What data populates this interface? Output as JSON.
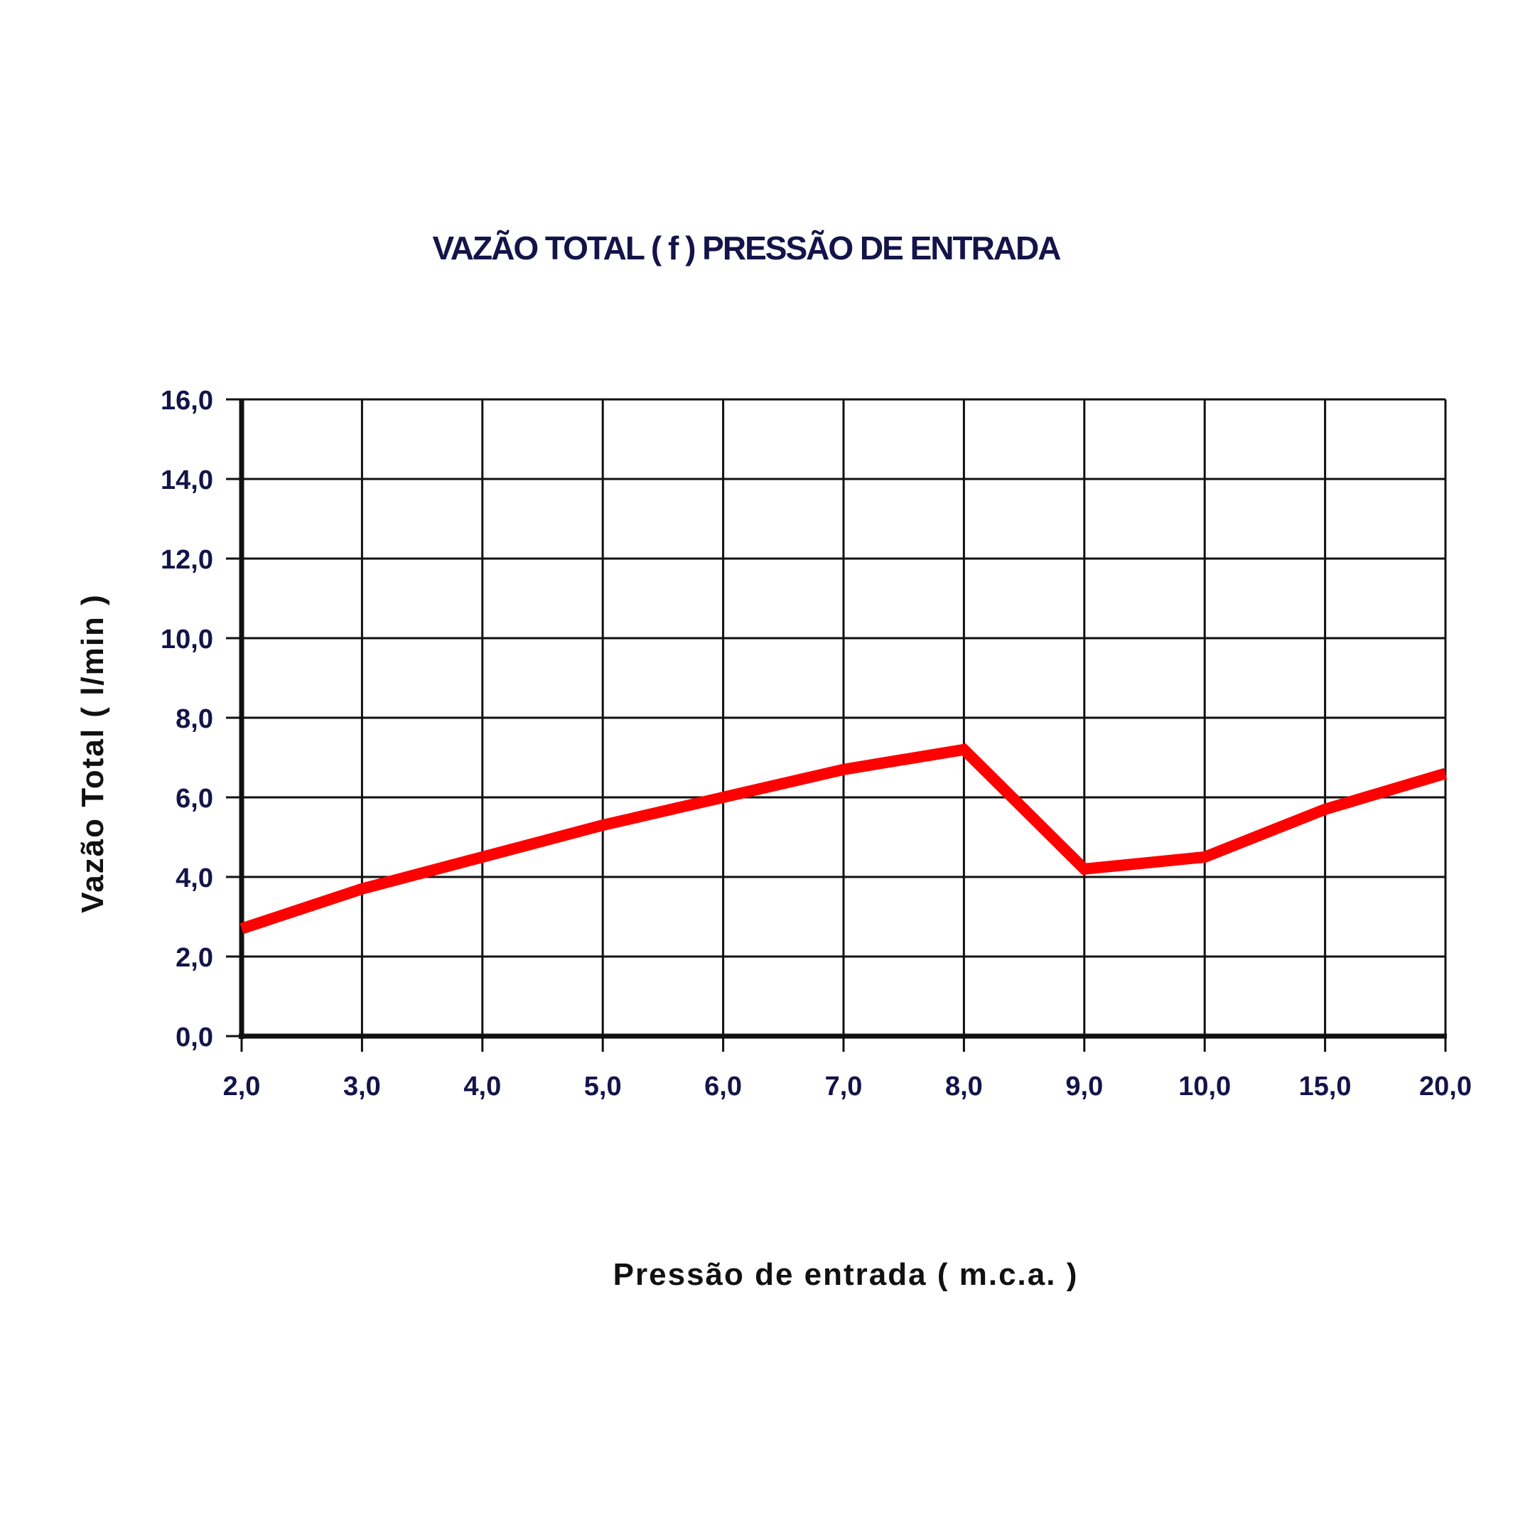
{
  "chart_data": {
    "type": "line",
    "title": "VAZÃO TOTAL ( f ) PRESSÃO DE ENTRADA",
    "xlabel": "Pressão de entrada ( m.c.a. )",
    "ylabel": "Vazão Total ( l/min )",
    "categories": [
      "2,0",
      "3,0",
      "4,0",
      "5,0",
      "6,0",
      "7,0",
      "8,0",
      "9,0",
      "10,0",
      "15,0",
      "20,0"
    ],
    "series": [
      {
        "values": [
          2.7,
          3.7,
          4.5,
          5.3,
          6.0,
          6.7,
          7.2,
          4.2,
          4.5,
          5.7,
          6.6
        ],
        "color": "#ff0000"
      }
    ],
    "yticks": [
      "0,0",
      "2,0",
      "4,0",
      "6,0",
      "8,0",
      "10,0",
      "12,0",
      "14,0",
      "16,0"
    ],
    "ylim": [
      0,
      16
    ],
    "grid": true,
    "legend": "none"
  }
}
